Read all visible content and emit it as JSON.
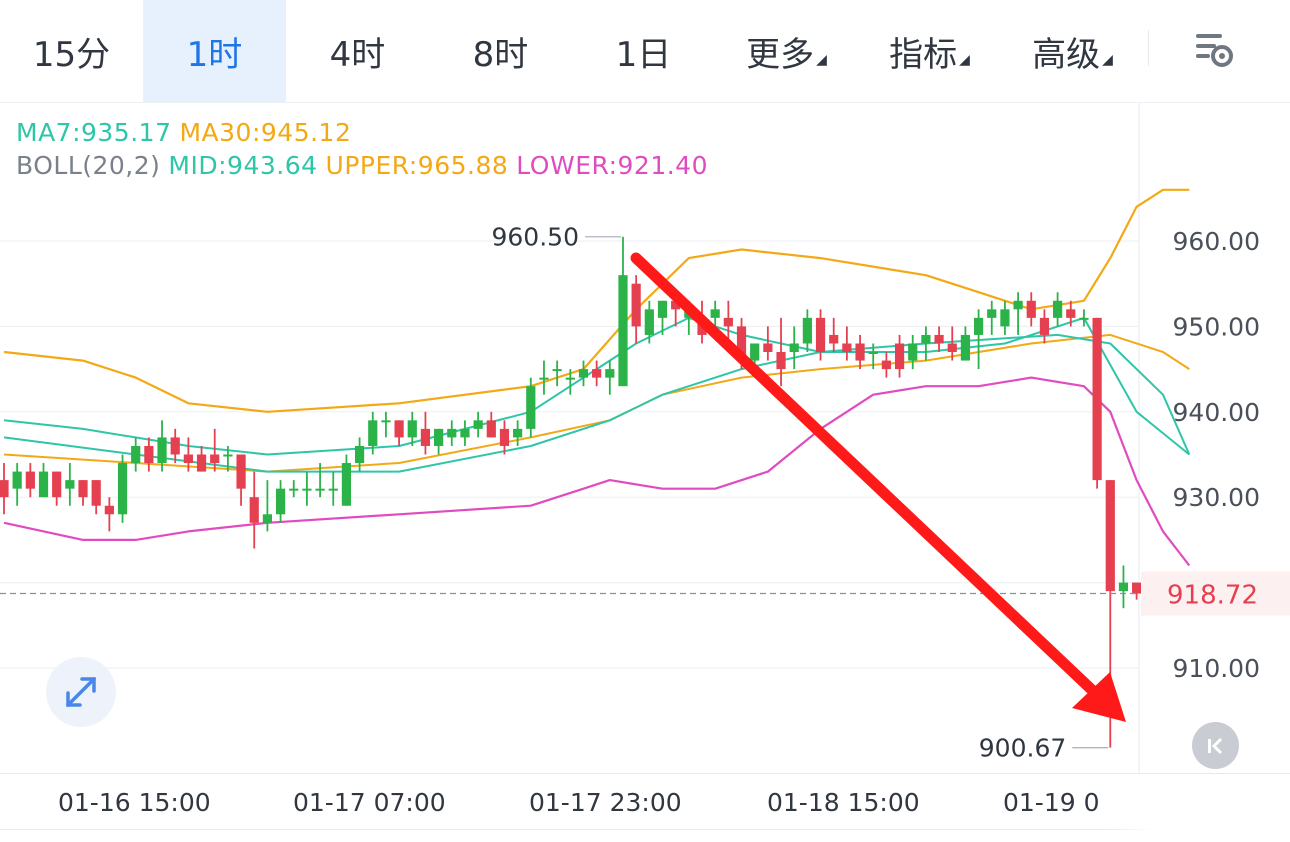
{
  "tabs": [
    {
      "label": "15分",
      "active": false,
      "caret": false
    },
    {
      "label": "1时",
      "active": true,
      "caret": false
    },
    {
      "label": "4时",
      "active": false,
      "caret": false
    },
    {
      "label": "8时",
      "active": false,
      "caret": false
    },
    {
      "label": "1日",
      "active": false,
      "caret": false
    },
    {
      "label": "更多",
      "active": false,
      "caret": true
    },
    {
      "label": "指标",
      "active": false,
      "caret": true
    },
    {
      "label": "高级",
      "active": false,
      "caret": true
    }
  ],
  "icons": {
    "settings": "chart-settings-icon",
    "expand": "expand-icon",
    "back": "scroll-to-latest-icon",
    "caret": "caret-down-icon"
  },
  "legend": {
    "ma7": "MA7:935.17",
    "ma30": "MA30:945.12",
    "boll_label": "BOLL(20,2)",
    "mid": "MID:943.64",
    "upper": "UPPER:965.88",
    "lower": "LOWER:921.40"
  },
  "colors": {
    "up": "#2bb34a",
    "down": "#e5404f",
    "ma7": "#2fc5a8",
    "ma30": "#f3a916",
    "mid": "#2fc5a8",
    "upper": "#f3a916",
    "lower": "#e04cc0",
    "accent": "#1f74e6",
    "arrow": "#ff1a1a"
  },
  "chart_data": {
    "type": "candlestick",
    "timeframe": "1时",
    "y_ticks": [
      960,
      950,
      940,
      930,
      910
    ],
    "y_tick_labels": [
      "960.00",
      "950.00",
      "940.00",
      "930.00",
      "910.00"
    ],
    "x_tick_labels": [
      "01-16 15:00",
      "01-17 07:00",
      "01-17 23:00",
      "01-18 15:00",
      "01-19 0"
    ],
    "current_price": "918.72",
    "high_marker": "960.50",
    "low_marker": "900.67",
    "candles": [
      [
        932,
        934,
        928,
        930
      ],
      [
        931,
        934,
        929,
        933
      ],
      [
        933,
        934,
        930,
        931
      ],
      [
        930,
        934,
        930,
        933
      ],
      [
        933,
        933,
        929,
        930
      ],
      [
        931,
        934,
        929,
        932
      ],
      [
        932,
        932,
        929,
        930
      ],
      [
        932,
        932,
        928,
        929
      ],
      [
        929,
        930,
        926,
        928
      ],
      [
        928,
        935,
        927,
        934
      ],
      [
        934,
        937,
        933,
        936
      ],
      [
        936,
        937,
        933,
        934
      ],
      [
        934,
        939,
        933,
        937
      ],
      [
        937,
        938,
        934,
        935
      ],
      [
        935,
        937,
        933,
        934
      ],
      [
        935,
        936,
        933,
        933
      ],
      [
        935,
        938,
        933,
        934
      ],
      [
        935,
        936,
        933,
        935
      ],
      [
        935,
        935,
        929,
        931
      ],
      [
        930,
        933,
        924,
        927
      ],
      [
        927,
        932,
        926,
        928
      ],
      [
        928,
        932,
        927,
        931
      ],
      [
        931,
        932,
        930,
        931
      ],
      [
        931,
        933,
        929,
        931
      ],
      [
        931,
        934,
        930,
        931
      ],
      [
        931,
        933,
        929,
        931
      ],
      [
        929,
        935,
        929,
        934
      ],
      [
        934,
        937,
        933,
        936
      ],
      [
        936,
        940,
        935,
        939
      ],
      [
        939,
        940,
        937,
        939
      ],
      [
        939,
        939,
        936,
        937
      ],
      [
        937,
        940,
        936,
        939
      ],
      [
        938,
        940,
        935,
        936
      ],
      [
        936,
        938,
        935,
        938
      ],
      [
        937,
        939,
        936,
        938
      ],
      [
        937,
        939,
        936,
        938
      ],
      [
        938,
        940,
        937,
        939
      ],
      [
        939,
        940,
        937,
        937
      ],
      [
        938,
        939,
        935,
        936
      ],
      [
        937,
        939,
        936,
        938
      ],
      [
        938,
        944,
        937,
        943
      ],
      [
        944,
        946,
        942,
        944
      ],
      [
        945,
        946,
        943,
        945
      ],
      [
        944,
        945,
        942,
        944
      ],
      [
        944,
        946,
        943,
        945
      ],
      [
        945,
        946,
        943,
        944
      ],
      [
        944,
        946,
        942,
        945
      ],
      [
        943,
        960.5,
        943,
        956
      ],
      [
        955,
        956,
        948,
        950
      ],
      [
        949,
        953,
        948,
        952
      ],
      [
        951,
        953,
        949,
        953
      ],
      [
        953,
        954,
        950,
        952
      ],
      [
        951,
        953,
        949,
        952
      ],
      [
        951,
        953,
        948,
        949
      ],
      [
        951,
        953,
        949,
        952
      ],
      [
        951,
        953,
        948,
        950
      ],
      [
        950,
        951,
        945,
        946
      ],
      [
        946,
        948,
        944,
        948
      ],
      [
        948,
        950,
        946,
        947
      ],
      [
        947,
        951,
        943,
        945
      ],
      [
        947,
        950,
        945,
        948
      ],
      [
        948,
        952,
        947,
        951
      ],
      [
        951,
        952,
        946,
        947
      ],
      [
        949,
        951,
        947,
        948
      ],
      [
        948,
        950,
        946,
        947
      ],
      [
        948,
        949,
        945,
        946
      ],
      [
        947,
        948,
        945,
        947
      ],
      [
        946,
        947,
        944,
        945
      ],
      [
        948,
        949,
        944,
        945
      ],
      [
        946,
        949,
        945,
        948
      ],
      [
        948,
        950,
        946,
        949
      ],
      [
        949,
        950,
        947,
        948
      ],
      [
        948,
        950,
        946,
        947
      ],
      [
        946,
        950,
        946,
        949
      ],
      [
        949,
        952,
        945,
        951
      ],
      [
        951,
        953,
        949,
        952
      ],
      [
        950,
        953,
        949,
        952
      ],
      [
        952,
        954,
        949,
        953
      ],
      [
        953,
        954,
        950,
        951
      ],
      [
        951,
        952,
        948,
        949
      ],
      [
        951,
        954,
        950,
        953
      ],
      [
        952,
        953,
        950,
        951
      ],
      [
        951,
        952,
        950,
        951
      ],
      [
        951,
        951,
        931,
        932
      ],
      [
        932,
        932,
        900.67,
        919
      ],
      [
        919,
        922,
        917,
        920
      ],
      [
        920,
        920,
        918,
        918.72
      ]
    ],
    "ma7": [
      [
        0,
        939
      ],
      [
        6,
        938
      ],
      [
        14,
        936
      ],
      [
        20,
        935
      ],
      [
        30,
        936
      ],
      [
        40,
        940
      ],
      [
        44,
        944
      ],
      [
        48,
        948
      ],
      [
        52,
        951
      ],
      [
        56,
        949
      ],
      [
        62,
        947
      ],
      [
        70,
        947
      ],
      [
        76,
        948
      ],
      [
        82,
        951
      ],
      [
        86,
        940
      ],
      [
        90,
        935
      ]
    ],
    "ma30": [
      [
        0,
        935
      ],
      [
        10,
        934
      ],
      [
        20,
        933
      ],
      [
        30,
        934
      ],
      [
        40,
        937
      ],
      [
        46,
        939
      ],
      [
        50,
        942
      ],
      [
        56,
        944
      ],
      [
        62,
        945
      ],
      [
        70,
        946
      ],
      [
        78,
        948
      ],
      [
        84,
        949
      ],
      [
        88,
        947
      ],
      [
        90,
        945
      ]
    ],
    "boll_mid": [
      [
        0,
        937
      ],
      [
        10,
        935
      ],
      [
        20,
        933
      ],
      [
        30,
        933
      ],
      [
        40,
        936
      ],
      [
        46,
        939
      ],
      [
        50,
        942
      ],
      [
        56,
        945
      ],
      [
        62,
        947
      ],
      [
        70,
        948
      ],
      [
        80,
        949
      ],
      [
        84,
        948
      ],
      [
        88,
        942
      ],
      [
        90,
        935
      ]
    ],
    "boll_upper": [
      [
        0,
        947
      ],
      [
        6,
        946
      ],
      [
        10,
        944
      ],
      [
        14,
        941
      ],
      [
        20,
        940
      ],
      [
        30,
        941
      ],
      [
        40,
        943
      ],
      [
        44,
        945
      ],
      [
        48,
        952
      ],
      [
        52,
        958
      ],
      [
        56,
        959
      ],
      [
        62,
        958
      ],
      [
        70,
        956
      ],
      [
        74,
        954
      ],
      [
        78,
        952
      ],
      [
        82,
        953
      ],
      [
        84,
        958
      ],
      [
        86,
        964
      ],
      [
        88,
        966
      ],
      [
        90,
        966
      ]
    ],
    "boll_lower": [
      [
        0,
        927
      ],
      [
        6,
        925
      ],
      [
        10,
        925
      ],
      [
        14,
        926
      ],
      [
        20,
        927
      ],
      [
        30,
        928
      ],
      [
        40,
        929
      ],
      [
        44,
        931
      ],
      [
        46,
        932
      ],
      [
        50,
        931
      ],
      [
        54,
        931
      ],
      [
        58,
        933
      ],
      [
        62,
        938
      ],
      [
        66,
        942
      ],
      [
        70,
        943
      ],
      [
        74,
        943
      ],
      [
        78,
        944
      ],
      [
        82,
        943
      ],
      [
        84,
        940
      ],
      [
        86,
        932
      ],
      [
        88,
        926
      ],
      [
        90,
        922
      ]
    ]
  }
}
